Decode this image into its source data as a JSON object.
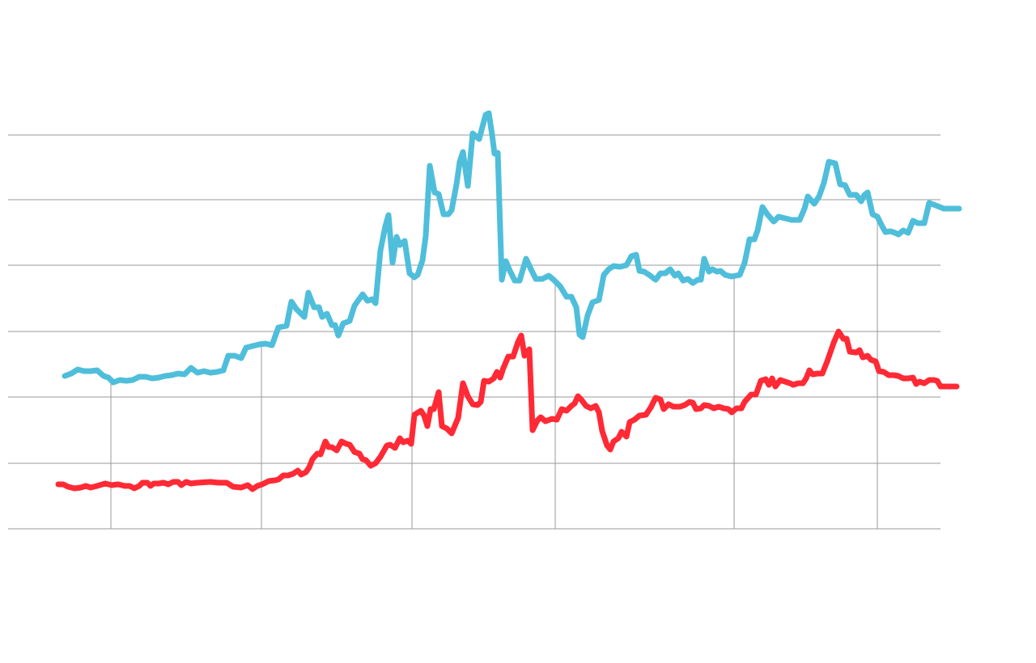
{
  "chart_data": {
    "type": "line",
    "xlim": [
      0,
      1152
    ],
    "ylim": [
      0,
      528
    ],
    "xticks": [
      127,
      313,
      499,
      676,
      897,
      1074
    ],
    "yticks": [
      0,
      81,
      163,
      244,
      326,
      407,
      487
    ],
    "grid": true,
    "series": [
      {
        "color": "#4fbedb",
        "x": [
          70,
          78,
          86,
          94,
          102,
          110,
          118,
          124,
          130,
          138,
          146,
          154,
          162,
          170,
          178,
          186,
          194,
          202,
          210,
          218,
          226,
          234,
          242,
          250,
          258,
          266,
          272,
          280,
          288,
          294,
          302,
          310,
          318,
          326,
          334,
          344,
          350,
          356,
          366,
          371,
          378,
          384,
          388,
          394,
          400,
          404,
          408,
          414,
          422,
          428,
          438,
          444,
          450,
          454,
          460,
          466,
          470,
          475,
          480,
          484,
          490,
          496,
          502,
          506,
          512,
          516,
          521,
          527,
          532,
          538,
          544,
          548,
          554,
          558,
          562,
          568,
          574,
          582,
          590,
          594,
          598,
          601,
          605,
          610,
          615,
          620,
          626,
          632,
          640,
          646,
          652,
          660,
          668,
          674,
          682,
          690,
          696,
          702,
          706,
          710,
          716,
          722,
          730,
          736,
          742,
          748,
          756,
          764,
          770,
          776,
          780,
          786,
          792,
          800,
          806,
          812,
          818,
          824,
          828,
          834,
          840,
          846,
          852,
          856,
          860,
          866,
          870,
          876,
          880,
          886,
          894,
          904,
          910,
          916,
          922,
          926,
          932,
          938,
          946,
          952,
          960,
          968,
          978,
          984,
          988,
          996,
          1002,
          1008,
          1014,
          1022,
          1028,
          1034,
          1040,
          1048,
          1054,
          1058,
          1062,
          1068,
          1074,
          1080,
          1084,
          1090,
          1096,
          1100,
          1106,
          1112,
          1118,
          1124,
          1132,
          1138,
          1146,
          1156,
          1166,
          1175
        ],
        "values": [
          189,
          192,
          197,
          195,
          195,
          196,
          189,
          187,
          181,
          184,
          183,
          184,
          188,
          188,
          186,
          187,
          189,
          190,
          192,
          191,
          199,
          193,
          195,
          193,
          194,
          196,
          214,
          214,
          211,
          224,
          226,
          228,
          229,
          227,
          249,
          251,
          281,
          272,
          262,
          292,
          274,
          274,
          262,
          266,
          252,
          252,
          239,
          254,
          257,
          276,
          290,
          282,
          284,
          279,
          344,
          374,
          388,
          329,
          361,
          351,
          356,
          316,
          311,
          314,
          332,
          362,
          449,
          416,
          414,
          389,
          389,
          394,
          426,
          454,
          466,
          424,
          489,
          482,
          512,
          514,
          487,
          464,
          465,
          308,
          331,
          319,
          307,
          307,
          334,
          321,
          309,
          309,
          313,
          308,
          300,
          287,
          287,
          274,
          240,
          237,
          264,
          280,
          283,
          314,
          321,
          325,
          324,
          326,
          337,
          339,
          319,
          318,
          314,
          308,
          316,
          316,
          321,
          313,
          316,
          307,
          309,
          304,
          308,
          308,
          334,
          318,
          321,
          318,
          319,
          314,
          312,
          314,
          329,
          358,
          358,
          369,
          398,
          389,
          380,
          386,
          384,
          382,
          382,
          396,
          411,
          402,
          411,
          428,
          454,
          452,
          426,
          425,
          413,
          413,
          405,
          413,
          416,
          389,
          386,
          374,
          367,
          368,
          366,
          364,
          369,
          366,
          381,
          378,
          378,
          403,
          400,
          396,
          396,
          396
        ]
      },
      {
        "color": "#ff2a35",
        "x": [
          62,
          68,
          74,
          82,
          90,
          96,
          102,
          110,
          120,
          128,
          136,
          144,
          150,
          156,
          162,
          166,
          172,
          176,
          180,
          186,
          192,
          198,
          204,
          210,
          214,
          220,
          226,
          234,
          250,
          260,
          270,
          278,
          288,
          296,
          302,
          308,
          314,
          322,
          330,
          334,
          340,
          346,
          352,
          358,
          362,
          368,
          372,
          376,
          382,
          386,
          392,
          396,
          400,
          406,
          412,
          418,
          422,
          428,
          434,
          438,
          442,
          448,
          454,
          460,
          468,
          472,
          478,
          484,
          488,
          494,
          498,
          502,
          510,
          514,
          518,
          522,
          526,
          532,
          536,
          542,
          548,
          556,
          562,
          568,
          574,
          580,
          584,
          588,
          594,
          600,
          604,
          608,
          612,
          618,
          624,
          630,
          634,
          638,
          644,
          648,
          654,
          658,
          664,
          672,
          678,
          684,
          690,
          696,
          700,
          704,
          708,
          714,
          720,
          726,
          730,
          734,
          740,
          744,
          748,
          754,
          758,
          764,
          768,
          774,
          780,
          788,
          794,
          800,
          806,
          810,
          816,
          822,
          830,
          836,
          842,
          846,
          850,
          856,
          860,
          866,
          872,
          878,
          884,
          890,
          894,
          900,
          906,
          910,
          918,
          924,
          930,
          936,
          940,
          944,
          948,
          954,
          960,
          966,
          970,
          976,
          982,
          986,
          990,
          994,
          1000,
          1006,
          1012,
          1020,
          1026,
          1032,
          1036,
          1040,
          1048,
          1052,
          1056,
          1062,
          1066,
          1072,
          1076,
          1082,
          1088,
          1094,
          1100,
          1106,
          1112,
          1118,
          1122,
          1126,
          1132,
          1138,
          1144,
          1148,
          1152,
          1160,
          1172
        ],
        "values": [
          55,
          55,
          52,
          50,
          51,
          53,
          51,
          53,
          56,
          54,
          55,
          53,
          53,
          50,
          53,
          57,
          57,
          53,
          56,
          56,
          57,
          55,
          58,
          58,
          54,
          58,
          56,
          57,
          58,
          57,
          57,
          52,
          51,
          54,
          49,
          53,
          55,
          59,
          60,
          61,
          66,
          66,
          68,
          72,
          67,
          70,
          76,
          86,
          93,
          92,
          108,
          101,
          101,
          97,
          108,
          105,
          104,
          95,
          93,
          86,
          85,
          78,
          81,
          89,
          103,
          104,
          100,
          112,
          107,
          109,
          105,
          141,
          146,
          140,
          127,
          148,
          148,
          169,
          127,
          124,
          118,
          137,
          180,
          164,
          154,
          153,
          157,
          183,
          182,
          186,
          194,
          187,
          199,
          213,
          213,
          231,
          239,
          214,
          222,
          122,
          134,
          138,
          133,
          136,
          135,
          148,
          146,
          152,
          155,
          164,
          160,
          152,
          149,
          152,
          144,
          121,
          103,
          98,
          108,
          112,
          120,
          114,
          132,
          135,
          140,
          141,
          150,
          162,
          160,
          148,
          154,
          151,
          151,
          153,
          157,
          156,
          148,
          149,
          153,
          152,
          149,
          151,
          149,
          148,
          144,
          149,
          149,
          157,
          166,
          166,
          183,
          185,
          178,
          186,
          176,
          184,
          182,
          180,
          178,
          180,
          180,
          186,
          196,
          191,
          192,
          192,
          207,
          230,
          244,
          235,
          235,
          219,
          218,
          221,
          212,
          214,
          209,
          207,
          195,
          194,
          190,
          190,
          189,
          186,
          186,
          187,
          179,
          182,
          180,
          184,
          184,
          183,
          176,
          176,
          176
        ]
      }
    ]
  }
}
